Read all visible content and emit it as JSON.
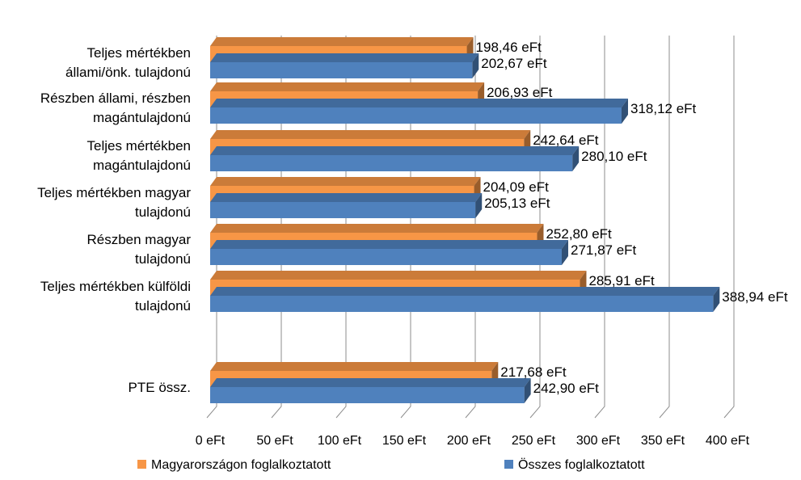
{
  "chart_data": {
    "type": "bar",
    "orientation": "horizontal",
    "style": "3d",
    "categories": [
      [
        "Teljes mértékben",
        "állami/önk. tulajdonú"
      ],
      [
        "Részben állami, részben",
        "magántulajdonú"
      ],
      [
        "Teljes mértékben",
        "magántulajdonú"
      ],
      [
        "Teljes mértékben magyar",
        "tulajdonú"
      ],
      [
        "Részben magyar",
        "tulajdonú"
      ],
      [
        "Teljes mértékben külföldi",
        "tulajdonú"
      ],
      [
        "PTE össz."
      ]
    ],
    "series": [
      {
        "name": "Magyarországon foglalkoztatott",
        "color": "#F79646",
        "values": [
          198.46,
          206.93,
          242.64,
          204.09,
          252.8,
          285.91,
          217.68
        ],
        "labels": [
          "198,46 eFt",
          "206,93 eFt",
          "242,64 eFt",
          "204,09 eFt",
          "252,80 eFt",
          "285,91 eFt",
          "217,68 eFt"
        ]
      },
      {
        "name": "Összes foglalkoztatott",
        "color": "#4F81BD",
        "values": [
          202.67,
          318.12,
          280.1,
          205.13,
          271.87,
          388.94,
          242.9
        ],
        "labels": [
          "202,67 eFt",
          "318,12 eFt",
          "280,10 eFt",
          "205,13 eFt",
          "271,87 eFt",
          "388,94 eFt",
          "242,90 eFt"
        ]
      }
    ],
    "xlim": [
      0,
      400
    ],
    "x_ticks": [
      "0 eFt",
      "50 eFt",
      "100 eFt",
      "150 eFt",
      "200 eFt",
      "250 eFt",
      "300 eFt",
      "350 eFt",
      "400 eFt"
    ],
    "grid": true,
    "legend_position": "bottom",
    "title": "",
    "xlabel": "",
    "ylabel": ""
  }
}
